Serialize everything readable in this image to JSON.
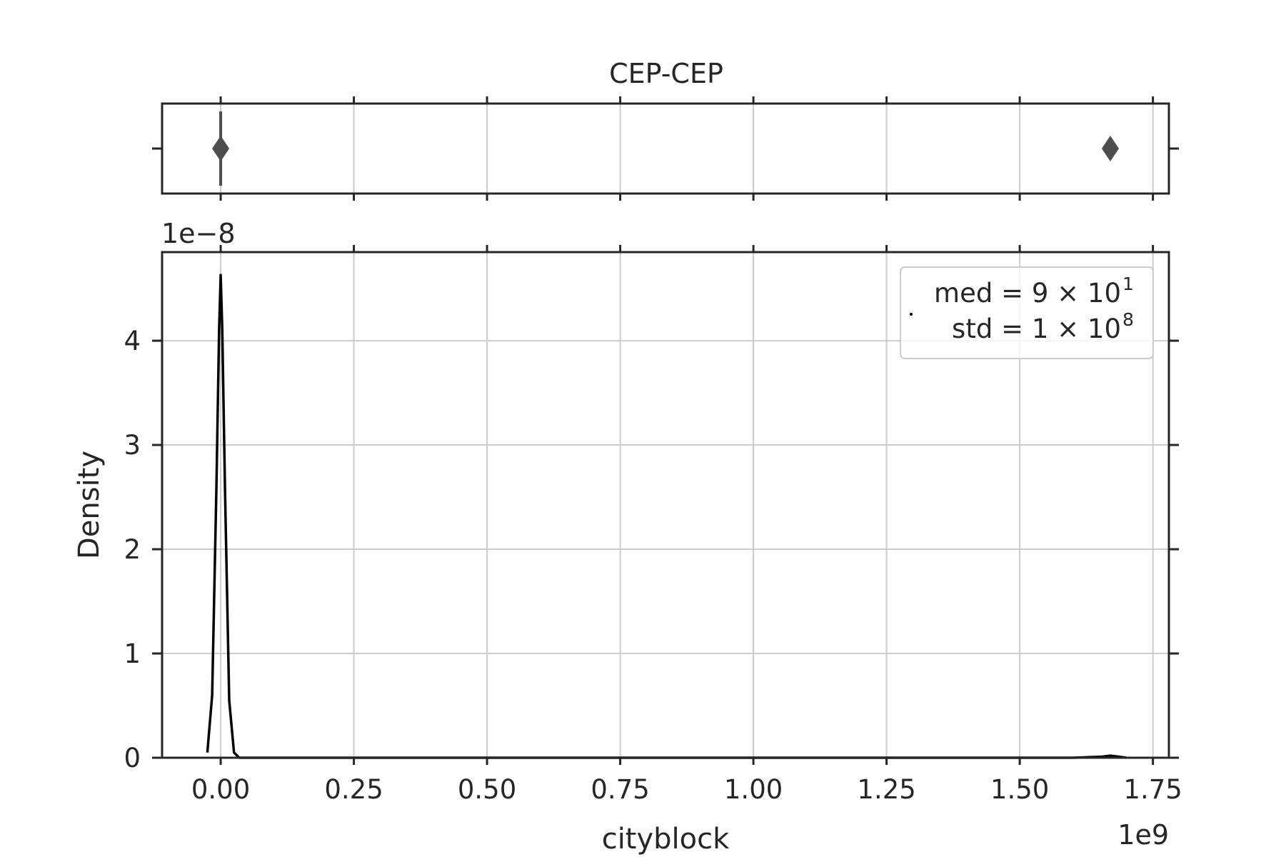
{
  "chart_data": {
    "title": "CEP-CEP",
    "boxplot": {
      "type": "box",
      "whisker_range": [
        -2000000,
        2000000
      ],
      "median": 90,
      "outliers": [
        0,
        1670000000
      ],
      "color": "#4d4d4d"
    },
    "kde": {
      "type": "line",
      "xlabel": "cityblock",
      "ylabel": "Density",
      "x_offset_text": "1e9",
      "y_offset_text": "1e−8",
      "xlim": [
        -0.11,
        1.78
      ],
      "ylim": [
        0,
        4.85
      ],
      "y_multiplier": 1e-08,
      "x_multiplier": 1000000000.0,
      "xticks": [
        0.0,
        0.25,
        0.5,
        0.75,
        1.0,
        1.25,
        1.5,
        1.75
      ],
      "xtick_labels": [
        "0.00",
        "0.25",
        "0.50",
        "0.75",
        "1.00",
        "1.25",
        "1.50",
        "1.75"
      ],
      "yticks": [
        0,
        1,
        2,
        3,
        4
      ],
      "ytick_labels": [
        "0",
        "1",
        "2",
        "3",
        "4"
      ],
      "grid": true,
      "line_color": "#000000",
      "series": {
        "x": [
          -0.025,
          -0.016,
          -0.008,
          -0.003,
          0.0,
          0.003,
          0.008,
          0.016,
          0.025,
          0.035,
          0.05,
          0.1,
          0.5,
          1.0,
          1.5,
          1.6,
          1.655,
          1.67,
          1.685,
          1.7
        ],
        "y": [
          0.05,
          0.6,
          2.6,
          4.1,
          4.63,
          4.1,
          2.6,
          0.55,
          0.05,
          0.0,
          0.0,
          0.0,
          0.0,
          0.0,
          0.0,
          0.0,
          0.01,
          0.02,
          0.01,
          0.0
        ]
      },
      "legend": {
        "position": "upper right",
        "line1": "med = 9 × 10",
        "line1_exp": "1",
        "line2": "std = 1 × 10",
        "line2_exp": "8"
      }
    }
  }
}
